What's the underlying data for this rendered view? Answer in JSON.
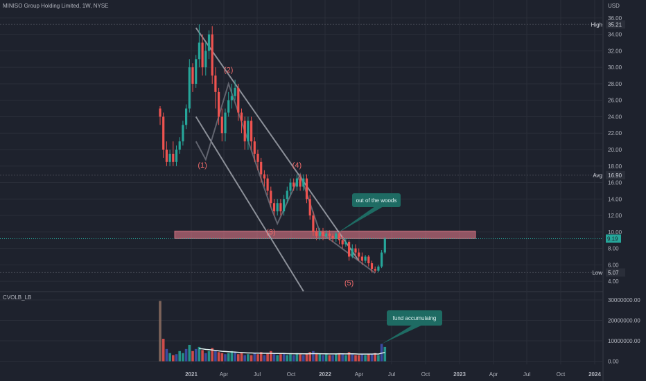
{
  "header": {
    "symbol_title": "MINISO Group Holding Limited, 1W, NYSE",
    "currency": "USD"
  },
  "indicator": {
    "label": "CVOLB_LB"
  },
  "markers": {
    "high": {
      "label": "High",
      "value": "35.21"
    },
    "avg": {
      "label": "Avg",
      "value": "16.90"
    },
    "low": {
      "label": "Low",
      "value": "5.07"
    }
  },
  "colors": {
    "background": "#1e222d",
    "up": "#26a69a",
    "down": "#ef5350",
    "channel": "#b2b5be",
    "zone": "#f08090",
    "wave_label": "#ef6b6b",
    "callout_bg": "#1e6b63"
  },
  "chart_data": [
    {
      "type": "candlestick",
      "title": "MINISO Group Holding Limited, 1W, NYSE",
      "ylabel": "USD",
      "ylim": [
        3.0,
        37.0
      ],
      "y_ticks": [
        "4.00",
        "6.00",
        "8.00",
        "10.00",
        "12.00",
        "14.00",
        "16.00",
        "18.00",
        "20.00",
        "22.00",
        "24.00",
        "26.00",
        "28.00",
        "30.00",
        "32.00",
        "34.00",
        "36.00"
      ],
      "x_ticks": [
        "2021",
        "Apr",
        "Jul",
        "Oct",
        "2022",
        "Apr",
        "Jul",
        "Oct",
        "2023",
        "Apr",
        "Jul",
        "Oct",
        "2024"
      ],
      "current_price": "9.19",
      "candles": [
        [
          0,
          25,
          24,
          25.3,
          23
        ],
        [
          1,
          24,
          20,
          24.5,
          19
        ],
        [
          2,
          20,
          18.5,
          21,
          18
        ],
        [
          3,
          18.5,
          19.5,
          20,
          18
        ],
        [
          4,
          19.5,
          18.5,
          21,
          18
        ],
        [
          5,
          18.5,
          20,
          20.5,
          18
        ],
        [
          6,
          20,
          21,
          21.5,
          19.5
        ],
        [
          7,
          21,
          23,
          23.5,
          20.5
        ],
        [
          8,
          23,
          25,
          25.5,
          22.5
        ],
        [
          9,
          25,
          30,
          31,
          24.5
        ],
        [
          10,
          30,
          28,
          30.5,
          27
        ],
        [
          11,
          28,
          31,
          31.5,
          27.5
        ],
        [
          12,
          31,
          33,
          35.21,
          30
        ],
        [
          13,
          33,
          30,
          34,
          29
        ],
        [
          14,
          30,
          32,
          33,
          29
        ],
        [
          15,
          32,
          34,
          34.5,
          31
        ],
        [
          16,
          34,
          29,
          35,
          28
        ],
        [
          17,
          29,
          27,
          30,
          25
        ],
        [
          18,
          27,
          24,
          27.5,
          23
        ],
        [
          19,
          24,
          22,
          25,
          21
        ],
        [
          20,
          22,
          24.5,
          25,
          21
        ],
        [
          21,
          24.5,
          26,
          27,
          24
        ],
        [
          22,
          26,
          26.5,
          28,
          25
        ],
        [
          23,
          26.5,
          27.5,
          28.5,
          26
        ],
        [
          24,
          27.5,
          24.5,
          28,
          23.5
        ],
        [
          25,
          24.5,
          23.5,
          25,
          22
        ],
        [
          26,
          23.5,
          21,
          24,
          20
        ],
        [
          27,
          21,
          23.5,
          24,
          20
        ],
        [
          28,
          23.5,
          21,
          24,
          20
        ],
        [
          29,
          21,
          19.5,
          21.5,
          18.5
        ],
        [
          30,
          19.5,
          18.5,
          20,
          17.5
        ],
        [
          31,
          18.5,
          17,
          19,
          16
        ],
        [
          32,
          17,
          16.5,
          17.5,
          15.5
        ],
        [
          33,
          16.5,
          15,
          17,
          14.5
        ],
        [
          34,
          15,
          13.5,
          15.5,
          13
        ],
        [
          35,
          13.5,
          12.5,
          14,
          12
        ],
        [
          36,
          12.5,
          13.5,
          14,
          12
        ],
        [
          37,
          13.5,
          12.5,
          14,
          12
        ],
        [
          38,
          12.5,
          14,
          14.5,
          12
        ],
        [
          39,
          14,
          15,
          15.5,
          13.5
        ],
        [
          40,
          15,
          16,
          16.5,
          14.5
        ],
        [
          41,
          16,
          15.5,
          16.5,
          15
        ],
        [
          42,
          15.5,
          16.5,
          17,
          15
        ],
        [
          43,
          16.5,
          15.5,
          17,
          15
        ],
        [
          44,
          15.5,
          16.5,
          17,
          15
        ],
        [
          45,
          16.5,
          14,
          17,
          13.5
        ],
        [
          46,
          14,
          12,
          14.5,
          11.5
        ],
        [
          47,
          12,
          10,
          12.5,
          9.5
        ],
        [
          48,
          10,
          9.5,
          10.5,
          9
        ],
        [
          49,
          9.5,
          10,
          10.5,
          9
        ],
        [
          50,
          10,
          9.5,
          10.5,
          9
        ],
        [
          51,
          9.5,
          9.8,
          10.2,
          9.2
        ],
        [
          52,
          9.8,
          9.5,
          10.2,
          9
        ],
        [
          53,
          9.5,
          9.2,
          9.8,
          8.8
        ],
        [
          54,
          9.2,
          9.8,
          10,
          8.8
        ],
        [
          55,
          9.8,
          9,
          10,
          8.5
        ],
        [
          56,
          9,
          8.5,
          9.5,
          8
        ],
        [
          57,
          8.5,
          8.8,
          9.2,
          8.2
        ],
        [
          58,
          8.8,
          7,
          9,
          6.5
        ],
        [
          59,
          7,
          8,
          8.5,
          6.8
        ],
        [
          60,
          8,
          7.5,
          8.5,
          7
        ],
        [
          61,
          7.5,
          7,
          8,
          6.5
        ],
        [
          62,
          7,
          6.5,
          7.5,
          6
        ],
        [
          63,
          6.5,
          7,
          7.2,
          6.2
        ],
        [
          64,
          7,
          6.2,
          7.2,
          5.8
        ],
        [
          65,
          6.2,
          5.5,
          6.5,
          5.07
        ],
        [
          66,
          5.5,
          5.3,
          5.8,
          5.07
        ],
        [
          67,
          5.3,
          5.8,
          6,
          5.1
        ],
        [
          68,
          5.8,
          7.5,
          7.8,
          5.6
        ],
        [
          69,
          7.5,
          9.19,
          9.4,
          7.3
        ]
      ],
      "zone": {
        "from": 9.2,
        "to": 10.1
      },
      "channel": {
        "upper": [
          [
            11,
            34.8
          ],
          [
            61,
            6.5
          ]
        ],
        "lower": [
          [
            11,
            24
          ],
          [
            44,
            2.8
          ]
        ]
      },
      "wave_path": [
        [
          11,
          21
        ],
        [
          14,
          18.8
        ],
        [
          21,
          28
        ],
        [
          34,
          13
        ],
        [
          36,
          11
        ],
        [
          43,
          17
        ],
        [
          49,
          10
        ],
        [
          66,
          5
        ]
      ],
      "wave_labels": [
        {
          "text": "(1)",
          "i": 13,
          "price": 17.8
        },
        {
          "text": "(2)",
          "i": 21,
          "price": 29.4
        },
        {
          "text": "(3)",
          "i": 34,
          "price": 9.7
        },
        {
          "text": "(4)",
          "i": 42,
          "price": 17.8
        },
        {
          "text": "(5)",
          "i": 58,
          "price": 3.5
        }
      ],
      "callouts": [
        {
          "text": "out of the woods",
          "target": [
            55,
            9.8
          ]
        }
      ]
    },
    {
      "type": "bar",
      "title": "CVOLB_LB",
      "ylim": [
        -1500000,
        31000000
      ],
      "y_ticks": [
        "0.00",
        "10000000.00",
        "20000000.00",
        "30000000.00"
      ],
      "volumes": [
        29500000,
        11000000,
        6000000,
        4000000,
        3000000,
        3500000,
        5000000,
        4000000,
        6000000,
        8000000,
        5000000,
        6000000,
        7000000,
        5500000,
        4000000,
        5000000,
        6500000,
        5000000,
        4500000,
        4000000,
        3500000,
        4000000,
        5000000,
        4500000,
        3500000,
        4000000,
        3000000,
        3500000,
        3000000,
        4000000,
        3500000,
        4500000,
        3000000,
        4000000,
        5000000,
        3500000,
        3000000,
        3500000,
        4000000,
        3000000,
        3500000,
        3000000,
        4000000,
        3500000,
        3000000,
        3500000,
        4500000,
        5000000,
        4000000,
        3500000,
        3000000,
        3500000,
        3000000,
        3000000,
        3500000,
        4000000,
        3500000,
        3000000,
        4500000,
        3500000,
        3000000,
        3000000,
        3500000,
        3000000,
        3500000,
        3500000,
        4000000,
        3000000,
        8500000,
        7000000
      ],
      "avg_line": [
        null,
        null,
        null,
        null,
        null,
        null,
        null,
        null,
        null,
        null,
        null,
        null,
        6200000,
        6100000,
        5800000,
        5700000,
        5500000,
        5300000,
        5100000,
        4900000,
        4800000,
        4700000,
        4600000,
        4500000,
        4400000,
        4300000,
        4200000,
        4100000,
        4100000,
        4000000,
        4000000,
        3950000,
        3900000,
        3900000,
        3900000,
        3850000,
        3800000,
        3800000,
        3800000,
        3750000,
        3750000,
        3700000,
        3700000,
        3700000,
        3650000,
        3650000,
        3700000,
        3750000,
        3750000,
        3700000,
        3650000,
        3650000,
        3600000,
        3600000,
        3600000,
        3650000,
        3650000,
        3600000,
        3650000,
        3650000,
        3600000,
        3550000,
        3550000,
        3550000,
        3550000,
        3550000,
        3600000,
        3550000,
        4000000,
        4300000
      ],
      "callouts": [
        {
          "text": "fund accumulaing",
          "target": [
            68,
            8500000
          ]
        }
      ]
    }
  ]
}
